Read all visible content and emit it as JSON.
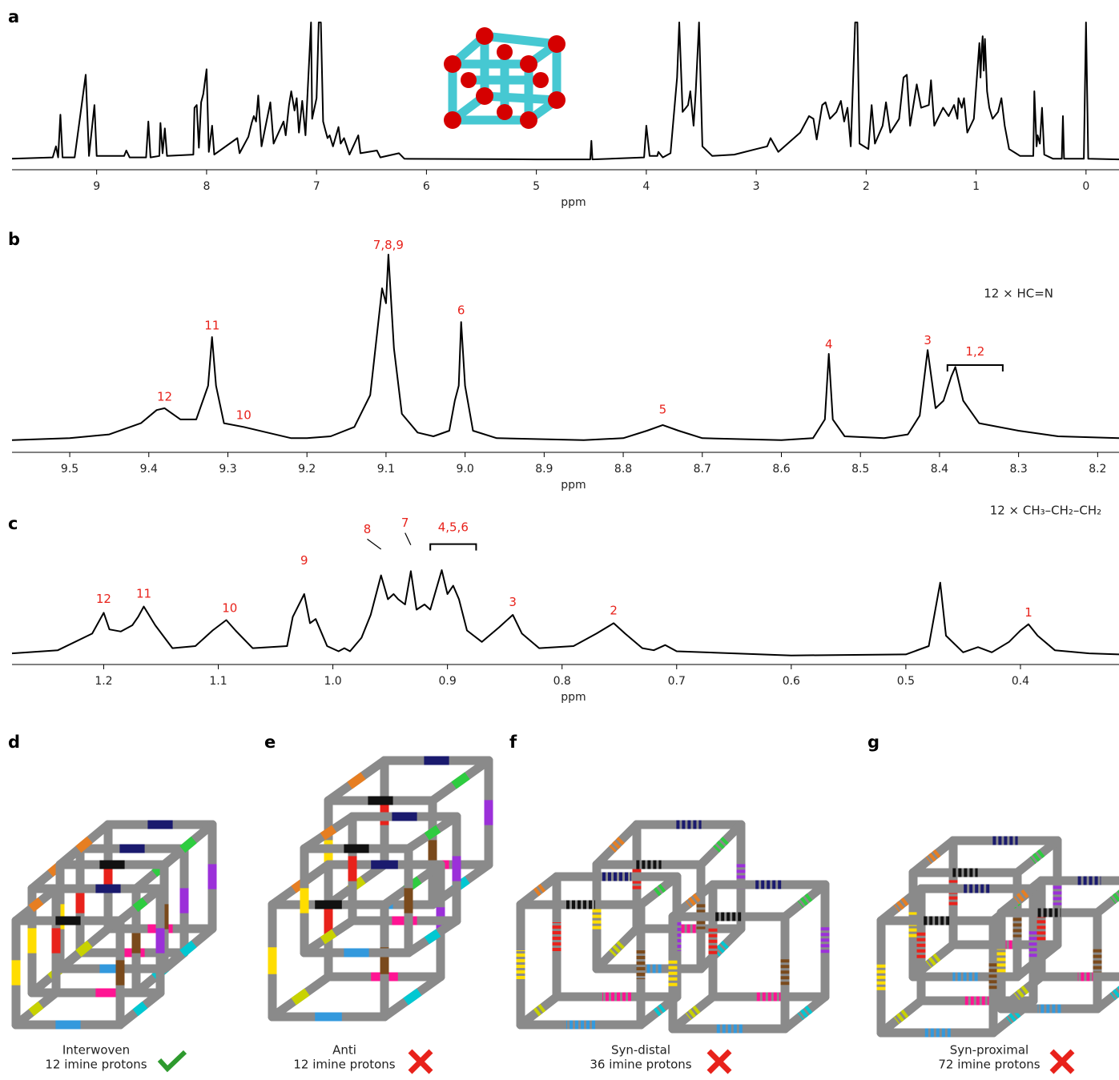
{
  "chart_data": [
    {
      "type": "line",
      "panel": "a",
      "xlabel": "ppm",
      "color": "#000000",
      "xlim": [
        9.77,
        -0.3
      ],
      "ylim": [
        0,
        100
      ],
      "xticks": [
        9,
        8,
        7,
        6,
        5,
        4,
        3,
        2,
        1,
        0
      ],
      "x": [
        9.77,
        9.4,
        9.37,
        9.35,
        9.33,
        9.31,
        9.2,
        9.1,
        9.07,
        9.02,
        9.0,
        8.75,
        8.73,
        8.7,
        8.55,
        8.53,
        8.51,
        8.43,
        8.42,
        8.4,
        8.38,
        8.36,
        8.12,
        8.11,
        8.09,
        8.07,
        8.05,
        8.03,
        8.0,
        7.98,
        7.95,
        7.93,
        7.72,
        7.7,
        7.62,
        7.59,
        7.57,
        7.55,
        7.53,
        7.5,
        7.42,
        7.39,
        7.3,
        7.28,
        7.25,
        7.23,
        7.2,
        7.18,
        7.16,
        7.13,
        7.1,
        7.05,
        7.04,
        7.0,
        6.98,
        6.96,
        6.94,
        6.92,
        6.9,
        6.88,
        6.85,
        6.8,
        6.78,
        6.75,
        6.7,
        6.62,
        6.6,
        6.45,
        6.42,
        6.25,
        6.2,
        5,
        4.51,
        4.5,
        4.49,
        4.02,
        4.0,
        3.97,
        3.9,
        3.89,
        3.85,
        3.78,
        3.72,
        3.7,
        3.67,
        3.62,
        3.6,
        3.57,
        3.55,
        3.52,
        3.49,
        3.4,
        3.2,
        3.0,
        2.9,
        2.87,
        2.8,
        2.6,
        2.52,
        2.48,
        2.45,
        2.4,
        2.37,
        2.33,
        2.27,
        2.23,
        2.2,
        2.17,
        2.14,
        2.1,
        2.08,
        2.06,
        1.98,
        1.95,
        1.92,
        1.85,
        1.82,
        1.78,
        1.7,
        1.66,
        1.63,
        1.6,
        1.54,
        1.5,
        1.43,
        1.41,
        1.38,
        1.3,
        1.25,
        1.2,
        1.17,
        1.16,
        1.13,
        1.11,
        1.08,
        1.05,
        1.02,
        0.97,
        0.96,
        0.95,
        0.94,
        0.93,
        0.92,
        0.9,
        0.88,
        0.85,
        0.8,
        0.77,
        0.74,
        0.7,
        0.6,
        0.48,
        0.47,
        0.45,
        0.44,
        0.42,
        0.4,
        0.38,
        0.3,
        0.22,
        0.21,
        0.2,
        0.02,
        0.0,
        -0.02,
        -0.3
      ],
      "values": [
        1,
        2,
        10,
        2,
        33,
        2,
        2,
        62,
        3,
        40,
        3,
        3,
        7,
        2,
        2,
        28,
        2,
        3,
        27,
        5,
        23,
        3,
        4,
        38,
        40,
        9,
        42,
        48,
        66,
        6,
        25,
        4,
        16,
        5,
        17,
        27,
        32,
        28,
        47,
        10,
        42,
        12,
        28,
        18,
        40,
        50,
        36,
        45,
        20,
        43,
        18,
        100,
        30,
        45,
        100,
        100,
        28,
        22,
        16,
        18,
        10,
        24,
        12,
        16,
        4,
        18,
        5,
        7,
        2,
        5,
        1,
        0.5,
        0.5,
        14,
        0.5,
        2,
        25,
        3,
        3,
        6,
        2,
        5,
        60,
        100,
        35,
        40,
        50,
        25,
        50,
        100,
        10,
        3,
        4,
        8,
        10,
        16,
        6,
        20,
        32,
        30,
        15,
        40,
        42,
        30,
        35,
        43,
        28,
        38,
        10,
        100,
        100,
        12,
        8,
        40,
        12,
        25,
        42,
        20,
        30,
        60,
        62,
        25,
        55,
        38,
        40,
        58,
        25,
        38,
        32,
        40,
        30,
        45,
        38,
        45,
        20,
        25,
        30,
        85,
        60,
        80,
        90,
        65,
        88,
        50,
        38,
        30,
        35,
        45,
        25,
        8,
        3,
        3,
        50,
        10,
        18,
        12,
        38,
        4,
        1,
        1,
        32,
        1,
        1,
        100,
        1,
        0.5
      ],
      "annotations": []
    },
    {
      "type": "line",
      "panel": "b",
      "xlabel": "ppm",
      "color": "#000000",
      "xlim": [
        9.573,
        8.173
      ],
      "ylim": [
        0,
        100
      ],
      "xticks": [
        9.5,
        9.4,
        9.3,
        9.2,
        9.1,
        {
          "value": 9.0,
          "label": "9.0"
        },
        8.9,
        8.8,
        8.7,
        8.6,
        8.5,
        8.4,
        8.3,
        8.2
      ],
      "x": [
        9.573,
        9.5,
        9.45,
        9.41,
        9.39,
        9.38,
        9.36,
        9.34,
        9.325,
        9.32,
        9.315,
        9.305,
        9.28,
        9.25,
        9.22,
        9.2,
        9.17,
        9.14,
        9.12,
        9.105,
        9.1,
        9.097,
        9.09,
        9.08,
        9.06,
        9.04,
        9.02,
        9.013,
        9.008,
        9.005,
        9.0,
        8.99,
        8.96,
        8.85,
        8.8,
        8.77,
        8.75,
        8.73,
        8.7,
        8.6,
        8.56,
        8.545,
        8.54,
        8.535,
        8.52,
        8.47,
        8.44,
        8.425,
        8.415,
        8.405,
        8.395,
        8.385,
        8.38,
        8.37,
        8.35,
        8.3,
        8.25,
        8.173
      ],
      "values": [
        1,
        2,
        4,
        10,
        17,
        18,
        12,
        12,
        30,
        56,
        30,
        10,
        8,
        5,
        2,
        2,
        3,
        8,
        25,
        82,
        74,
        100,
        50,
        15,
        5,
        3,
        6,
        22,
        30,
        64,
        30,
        6,
        2,
        1,
        2,
        6,
        9,
        6,
        2,
        1,
        2,
        12,
        47,
        12,
        3,
        2,
        4,
        14,
        49,
        18,
        22,
        35,
        40,
        22,
        10,
        6,
        3,
        2
      ],
      "annotations": [
        {
          "text": "12",
          "x": 9.38,
          "y": 24
        },
        {
          "text": "11",
          "x": 9.32,
          "y": 62
        },
        {
          "text": "10",
          "x": 9.28,
          "y": 14
        },
        {
          "text": "7,8,9",
          "x": 9.097,
          "y": 105
        },
        {
          "text": "6",
          "x": 9.005,
          "y": 70
        },
        {
          "text": "5",
          "x": 8.75,
          "y": 17
        },
        {
          "text": "4",
          "x": 8.54,
          "y": 52
        },
        {
          "text": "3",
          "x": 8.415,
          "y": 54
        },
        {
          "text": "1,2",
          "x": 8.355,
          "y": 48,
          "bracket": [
            8.39,
            8.32,
            41
          ]
        },
        {
          "text": "12 × HC=N",
          "x": 8.3,
          "y": 79,
          "style": "plain"
        }
      ]
    },
    {
      "type": "line",
      "panel": "c",
      "xlabel": "ppm",
      "color": "#000000",
      "xlim": [
        1.28,
        0.314
      ],
      "ylim": [
        0,
        100
      ],
      "xticks": [
        1.2,
        1.1,
        {
          "value": 1.0,
          "label": "1.0"
        },
        0.9,
        0.8,
        0.7,
        0.6,
        0.5,
        0.4
      ],
      "x": [
        1.28,
        1.24,
        1.21,
        1.2,
        1.195,
        1.185,
        1.175,
        1.17,
        1.165,
        1.155,
        1.14,
        1.12,
        1.105,
        1.093,
        1.085,
        1.07,
        1.04,
        1.035,
        1.025,
        1.02,
        1.015,
        1.005,
        0.995,
        0.99,
        0.985,
        0.975,
        0.967,
        0.958,
        0.952,
        0.947,
        0.943,
        0.937,
        0.932,
        0.927,
        0.92,
        0.915,
        0.905,
        0.9,
        0.895,
        0.89,
        0.883,
        0.87,
        0.855,
        0.843,
        0.835,
        0.82,
        0.79,
        0.77,
        0.755,
        0.745,
        0.73,
        0.72,
        0.71,
        0.7,
        0.65,
        0.6,
        0.5,
        0.48,
        0.47,
        0.465,
        0.45,
        0.437,
        0.425,
        0.41,
        0.4,
        0.393,
        0.385,
        0.37,
        0.34,
        0.314
      ],
      "values": [
        3,
        6,
        22,
        42,
        26,
        24,
        30,
        38,
        48,
        30,
        8,
        10,
        25,
        35,
        25,
        8,
        10,
        38,
        60,
        32,
        36,
        10,
        5,
        8,
        5,
        18,
        40,
        78,
        55,
        60,
        55,
        50,
        82,
        45,
        50,
        45,
        83,
        60,
        68,
        55,
        25,
        14,
        28,
        40,
        22,
        8,
        10,
        22,
        32,
        22,
        8,
        6,
        11,
        5,
        3,
        1,
        2,
        10,
        71,
        20,
        4,
        9,
        4,
        14,
        25,
        31,
        20,
        6,
        3,
        2
      ],
      "annotations": [
        {
          "text": "12",
          "x": 1.2,
          "y": 55
        },
        {
          "text": "11",
          "x": 1.165,
          "y": 60
        },
        {
          "text": "10",
          "x": 1.09,
          "y": 46
        },
        {
          "text": "9",
          "x": 1.025,
          "y": 92
        },
        {
          "text": "8",
          "x": 0.97,
          "y": 122,
          "leader_to": [
            0.958,
            100
          ]
        },
        {
          "text": "7",
          "x": 0.937,
          "y": 128,
          "leader_to": [
            0.932,
            104
          ]
        },
        {
          "text": "4,5,6",
          "x": 0.895,
          "y": 124,
          "bracket": [
            0.915,
            0.875,
            108
          ]
        },
        {
          "text": "3",
          "x": 0.843,
          "y": 52
        },
        {
          "text": "2",
          "x": 0.755,
          "y": 44
        },
        {
          "text": "1",
          "x": 0.393,
          "y": 42
        },
        {
          "text": "12 × CH₃–CH₂–CH₂",
          "x": 0.378,
          "y": 140,
          "style": "plain"
        }
      ]
    }
  ],
  "panels": [
    {
      "label": "d",
      "caption": [
        "Interwoven",
        "12 imine protons"
      ],
      "valid": true
    },
    {
      "label": "e",
      "caption": [
        "Anti",
        "12 imine protons"
      ],
      "valid": false
    },
    {
      "label": "f",
      "caption": [
        "Syn-distal",
        "36 imine protons"
      ],
      "valid": false
    },
    {
      "label": "g",
      "caption": [
        "Syn-proximal",
        "72 imine protons"
      ],
      "valid": false
    }
  ]
}
